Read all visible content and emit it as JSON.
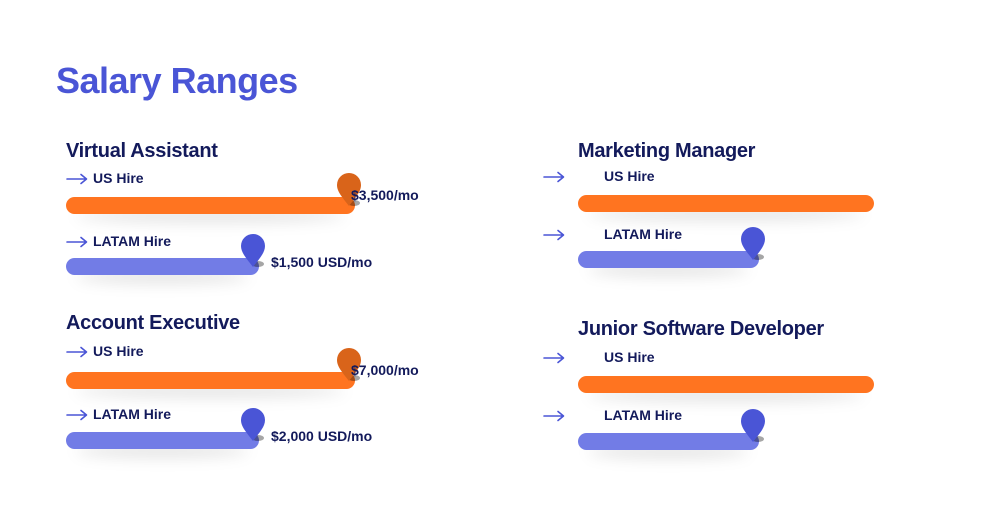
{
  "page_title": "Salary Ranges",
  "colors": {
    "title": "#4a55d6",
    "text": "#131a5b",
    "us_bar": "#ff7420",
    "us_pin": "#d9641a",
    "latam_bar": "#727ce6",
    "latam_pin": "#4a55d6"
  },
  "chart_data": {
    "type": "bar",
    "title": "Salary Ranges",
    "roles": [
      {
        "name": "Virtual Assistant",
        "rows": [
          {
            "label": "US Hire",
            "value": 3500,
            "value_label": "$3,500/mo",
            "fill": 0.93
          },
          {
            "label": "LATAM Hire",
            "value": 1500,
            "value_label": "$1,500 USD/mo",
            "fill": 0.62
          }
        ]
      },
      {
        "name": "Marketing Manager",
        "rows": [
          {
            "label": "US Hire",
            "value": null,
            "value_label": "",
            "fill": 1.0
          },
          {
            "label": "LATAM Hire",
            "value": null,
            "value_label": "",
            "fill": 0.61
          }
        ]
      },
      {
        "name": "Account Executive",
        "rows": [
          {
            "label": "US Hire",
            "value": 7000,
            "value_label": "$7,000/mo",
            "fill": 0.93
          },
          {
            "label": "LATAM Hire",
            "value": 2000,
            "value_label": "$2,000 USD/mo",
            "fill": 0.62
          }
        ]
      },
      {
        "name": "Junior Software Developer",
        "rows": [
          {
            "label": "US Hire",
            "value": null,
            "value_label": "",
            "fill": 1.0
          },
          {
            "label": "LATAM Hire",
            "value": null,
            "value_label": "",
            "fill": 0.61
          }
        ]
      }
    ]
  }
}
